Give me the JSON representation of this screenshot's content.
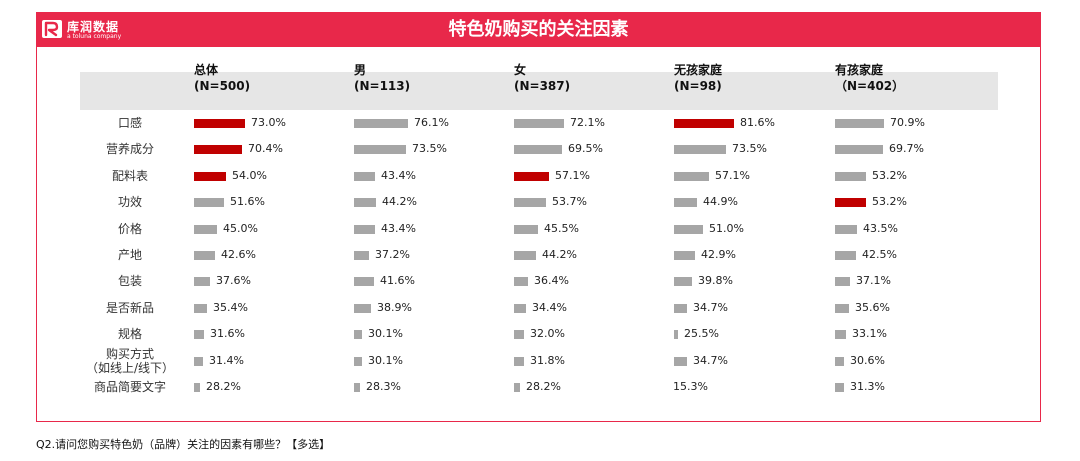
{
  "brand": {
    "name": "库润数据",
    "tagline": "a toluna company"
  },
  "footnote": "Q2.请问您购买特色奶（品牌）关注的因素有哪些？【多选】",
  "colors": {
    "accent": "#e8284a",
    "highlight_bar": "#c00000",
    "bar": "#a6a6a6",
    "header_band": "#e6e6e6"
  },
  "chart_data": {
    "type": "bar",
    "title": "特色奶购买的关注因素",
    "orientation": "horizontal",
    "categories": [
      "口感",
      "营养成分",
      "配料表",
      "功效",
      "价格",
      "产地",
      "包装",
      "是否新品",
      "规格",
      "购买方式\n（如线上/线下）",
      "商品简要文字"
    ],
    "category_lines": [
      [
        "口感"
      ],
      [
        "营养成分"
      ],
      [
        "配料表"
      ],
      [
        "功效"
      ],
      [
        "价格"
      ],
      [
        "产地"
      ],
      [
        "包装"
      ],
      [
        "是否新品"
      ],
      [
        "规格"
      ],
      [
        "购买方式",
        "（如线上/线下）"
      ],
      [
        "商品简要文字"
      ]
    ],
    "series": [
      {
        "name": "总体",
        "n_label": "(N=500)",
        "values": [
          73.0,
          70.4,
          54.0,
          51.6,
          45.0,
          42.6,
          37.6,
          35.4,
          31.6,
          31.4,
          28.2
        ],
        "highlight": [
          0,
          1,
          2
        ]
      },
      {
        "name": "男",
        "n_label": "(N=113)",
        "values": [
          76.1,
          73.5,
          43.4,
          44.2,
          43.4,
          37.2,
          41.6,
          38.9,
          30.1,
          30.1,
          28.3
        ],
        "highlight": []
      },
      {
        "name": "女",
        "n_label": "(N=387)",
        "values": [
          72.1,
          69.5,
          57.1,
          53.7,
          45.5,
          44.2,
          36.4,
          34.4,
          32.0,
          31.8,
          28.2
        ],
        "highlight": [
          2
        ]
      },
      {
        "name": "无孩家庭",
        "n_label": "(N=98)",
        "values": [
          81.6,
          73.5,
          57.1,
          44.9,
          51.0,
          42.9,
          39.8,
          34.7,
          25.5,
          34.7,
          15.3
        ],
        "highlight": [
          0
        ]
      },
      {
        "name": "有孩家庭",
        "n_label": "（N=402）",
        "values": [
          70.9,
          69.7,
          53.2,
          53.2,
          43.5,
          42.5,
          37.1,
          35.6,
          33.1,
          30.6,
          31.3
        ],
        "highlight": [
          3
        ]
      }
    ],
    "value_suffix": "%",
    "decimals": 1,
    "xlim": [
      0,
      100
    ],
    "grid": false,
    "legend": "none"
  }
}
